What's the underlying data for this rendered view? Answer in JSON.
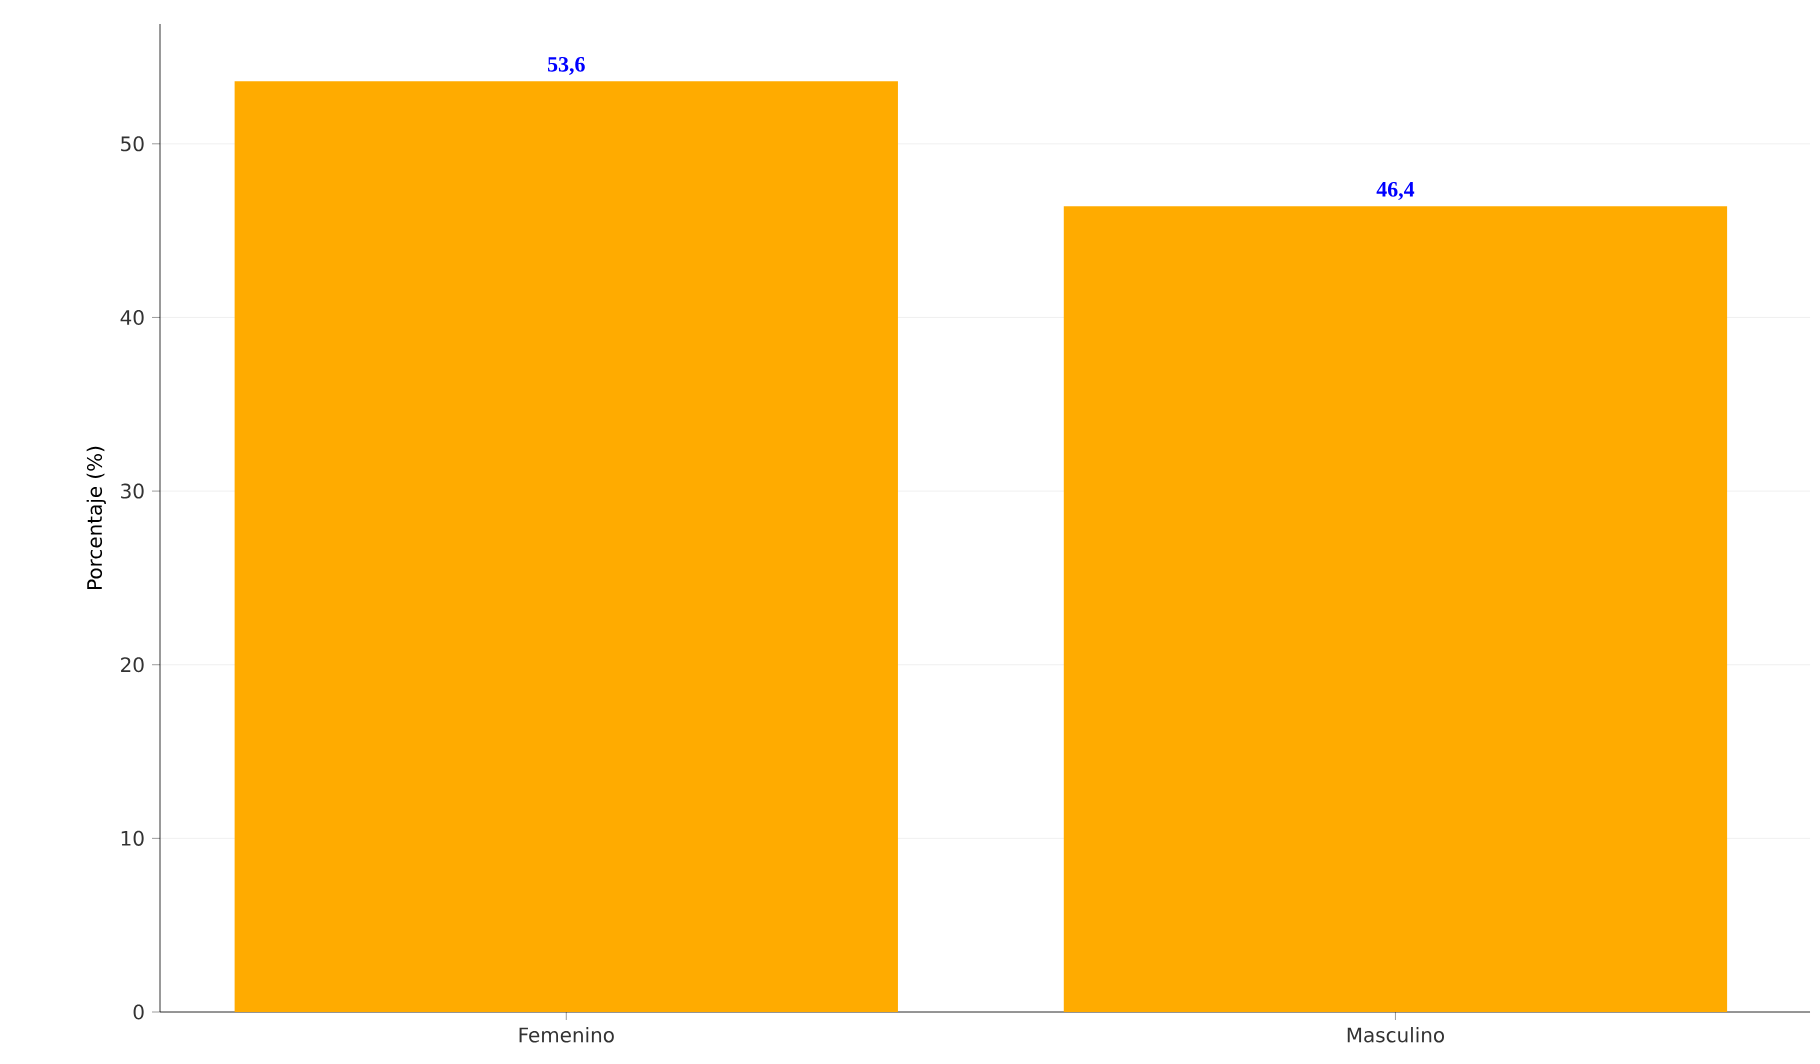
{
  "chart_data": {
    "type": "bar",
    "ylabel": "Porcentaje (%)",
    "categories": [
      "Femenino",
      "Masculino"
    ],
    "values": [
      53.6,
      46.4
    ],
    "value_labels": [
      "53,6",
      "46,4"
    ],
    "color": "#ffab00",
    "ylim": [
      0,
      56.9
    ],
    "yticks": [
      0,
      10,
      20,
      30,
      40,
      50
    ],
    "grid": "y"
  }
}
